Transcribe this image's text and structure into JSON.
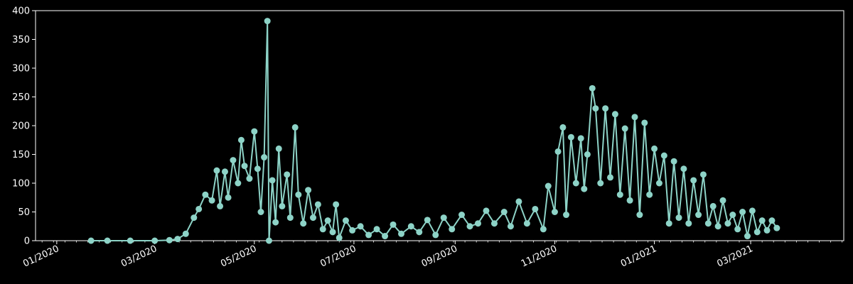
{
  "chart_data": {
    "type": "line",
    "title": "",
    "xlabel": "",
    "ylabel": "",
    "style": {
      "background": "#000000",
      "foreground": "#ffffff",
      "series_color": "#8dd3c7",
      "marker": "circle"
    },
    "xlim": [
      "2019-12-19",
      "2021-04-27"
    ],
    "ylim": [
      0,
      400
    ],
    "yticks": [
      0,
      50,
      100,
      150,
      200,
      250,
      300,
      350,
      400
    ],
    "xticks": [
      {
        "date": "2020-01-01",
        "label": "01/2020"
      },
      {
        "date": "2020-03-01",
        "label": "03/2020"
      },
      {
        "date": "2020-05-01",
        "label": "05/2020"
      },
      {
        "date": "2020-07-01",
        "label": "07/2020"
      },
      {
        "date": "2020-09-01",
        "label": "09/2020"
      },
      {
        "date": "2020-11-01",
        "label": "11/2020"
      },
      {
        "date": "2021-01-01",
        "label": "01/2021"
      },
      {
        "date": "2021-03-01",
        "label": "03/2021"
      }
    ],
    "grid": false,
    "series": [
      {
        "values": [
          [
            "2020-01-22",
            0
          ],
          [
            "2020-02-01",
            0
          ],
          [
            "2020-02-15",
            0
          ],
          [
            "2020-03-01",
            0
          ],
          [
            "2020-03-10",
            1
          ],
          [
            "2020-03-15",
            3
          ],
          [
            "2020-03-20",
            12
          ],
          [
            "2020-03-25",
            40
          ],
          [
            "2020-03-28",
            55
          ],
          [
            "2020-04-01",
            80
          ],
          [
            "2020-04-05",
            70
          ],
          [
            "2020-04-08",
            122
          ],
          [
            "2020-04-10",
            60
          ],
          [
            "2020-04-13",
            120
          ],
          [
            "2020-04-15",
            75
          ],
          [
            "2020-04-18",
            140
          ],
          [
            "2020-04-21",
            100
          ],
          [
            "2020-04-23",
            175
          ],
          [
            "2020-04-25",
            130
          ],
          [
            "2020-04-28",
            108
          ],
          [
            "2020-05-01",
            190
          ],
          [
            "2020-05-03",
            125
          ],
          [
            "2020-05-05",
            50
          ],
          [
            "2020-05-07",
            145
          ],
          [
            "2020-05-09",
            382
          ],
          [
            "2020-05-10",
            0
          ],
          [
            "2020-05-12",
            105
          ],
          [
            "2020-05-14",
            32
          ],
          [
            "2020-05-16",
            160
          ],
          [
            "2020-05-18",
            60
          ],
          [
            "2020-05-21",
            115
          ],
          [
            "2020-05-23",
            40
          ],
          [
            "2020-05-26",
            197
          ],
          [
            "2020-05-28",
            80
          ],
          [
            "2020-05-31",
            30
          ],
          [
            "2020-06-03",
            88
          ],
          [
            "2020-06-06",
            40
          ],
          [
            "2020-06-09",
            63
          ],
          [
            "2020-06-12",
            20
          ],
          [
            "2020-06-15",
            35
          ],
          [
            "2020-06-18",
            15
          ],
          [
            "2020-06-20",
            63
          ],
          [
            "2020-06-22",
            5
          ],
          [
            "2020-06-26",
            35
          ],
          [
            "2020-06-30",
            18
          ],
          [
            "2020-07-05",
            25
          ],
          [
            "2020-07-10",
            10
          ],
          [
            "2020-07-15",
            20
          ],
          [
            "2020-07-20",
            8
          ],
          [
            "2020-07-25",
            28
          ],
          [
            "2020-07-30",
            12
          ],
          [
            "2020-08-05",
            25
          ],
          [
            "2020-08-10",
            15
          ],
          [
            "2020-08-15",
            36
          ],
          [
            "2020-08-20",
            10
          ],
          [
            "2020-08-25",
            40
          ],
          [
            "2020-08-30",
            20
          ],
          [
            "2020-09-05",
            45
          ],
          [
            "2020-09-10",
            25
          ],
          [
            "2020-09-15",
            30
          ],
          [
            "2020-09-20",
            52
          ],
          [
            "2020-09-25",
            30
          ],
          [
            "2020-10-01",
            50
          ],
          [
            "2020-10-05",
            25
          ],
          [
            "2020-10-10",
            68
          ],
          [
            "2020-10-15",
            30
          ],
          [
            "2020-10-20",
            55
          ],
          [
            "2020-10-25",
            20
          ],
          [
            "2020-10-28",
            95
          ],
          [
            "2020-11-01",
            50
          ],
          [
            "2020-11-03",
            155
          ],
          [
            "2020-11-06",
            197
          ],
          [
            "2020-11-08",
            45
          ],
          [
            "2020-11-11",
            180
          ],
          [
            "2020-11-14",
            100
          ],
          [
            "2020-11-17",
            178
          ],
          [
            "2020-11-19",
            90
          ],
          [
            "2020-11-21",
            150
          ],
          [
            "2020-11-24",
            265
          ],
          [
            "2020-11-26",
            230
          ],
          [
            "2020-11-29",
            100
          ],
          [
            "2020-12-02",
            230
          ],
          [
            "2020-12-05",
            110
          ],
          [
            "2020-12-08",
            220
          ],
          [
            "2020-12-11",
            80
          ],
          [
            "2020-12-14",
            195
          ],
          [
            "2020-12-17",
            70
          ],
          [
            "2020-12-20",
            215
          ],
          [
            "2020-12-23",
            45
          ],
          [
            "2020-12-26",
            205
          ],
          [
            "2020-12-29",
            80
          ],
          [
            "2021-01-01",
            160
          ],
          [
            "2021-01-04",
            100
          ],
          [
            "2021-01-07",
            148
          ],
          [
            "2021-01-10",
            30
          ],
          [
            "2021-01-13",
            138
          ],
          [
            "2021-01-16",
            40
          ],
          [
            "2021-01-19",
            125
          ],
          [
            "2021-01-22",
            30
          ],
          [
            "2021-01-25",
            105
          ],
          [
            "2021-01-28",
            45
          ],
          [
            "2021-01-31",
            115
          ],
          [
            "2021-02-03",
            30
          ],
          [
            "2021-02-06",
            60
          ],
          [
            "2021-02-09",
            25
          ],
          [
            "2021-02-12",
            70
          ],
          [
            "2021-02-15",
            30
          ],
          [
            "2021-02-18",
            45
          ],
          [
            "2021-02-21",
            20
          ],
          [
            "2021-02-24",
            50
          ],
          [
            "2021-02-27",
            8
          ],
          [
            "2021-03-02",
            52
          ],
          [
            "2021-03-05",
            15
          ],
          [
            "2021-03-08",
            35
          ],
          [
            "2021-03-11",
            18
          ],
          [
            "2021-03-14",
            35
          ],
          [
            "2021-03-17",
            22
          ]
        ]
      }
    ]
  }
}
